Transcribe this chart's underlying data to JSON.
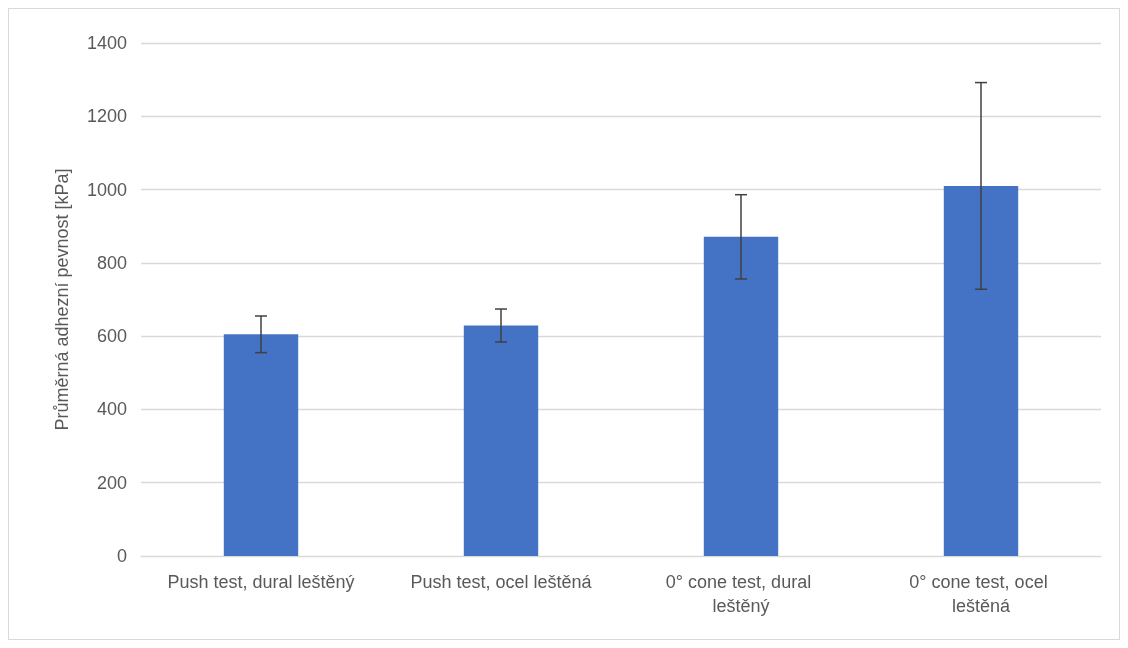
{
  "chart_data": {
    "type": "bar",
    "ylabel": "Průměrná adhezní pevnost [kPa]",
    "categories": [
      "Push test, dural leštěný",
      "Push test, ocel leštěná",
      "0° cone test, dural leštěný",
      "0° cone test, ocel leštěná"
    ],
    "values": [
      605,
      629,
      871,
      1010
    ],
    "errors": [
      50,
      45,
      115,
      282
    ],
    "color": "#4472c4",
    "ylim": [
      0,
      1400
    ],
    "yticks": [
      0,
      200,
      400,
      600,
      800,
      1000,
      1200,
      1400
    ],
    "grid": "y"
  }
}
